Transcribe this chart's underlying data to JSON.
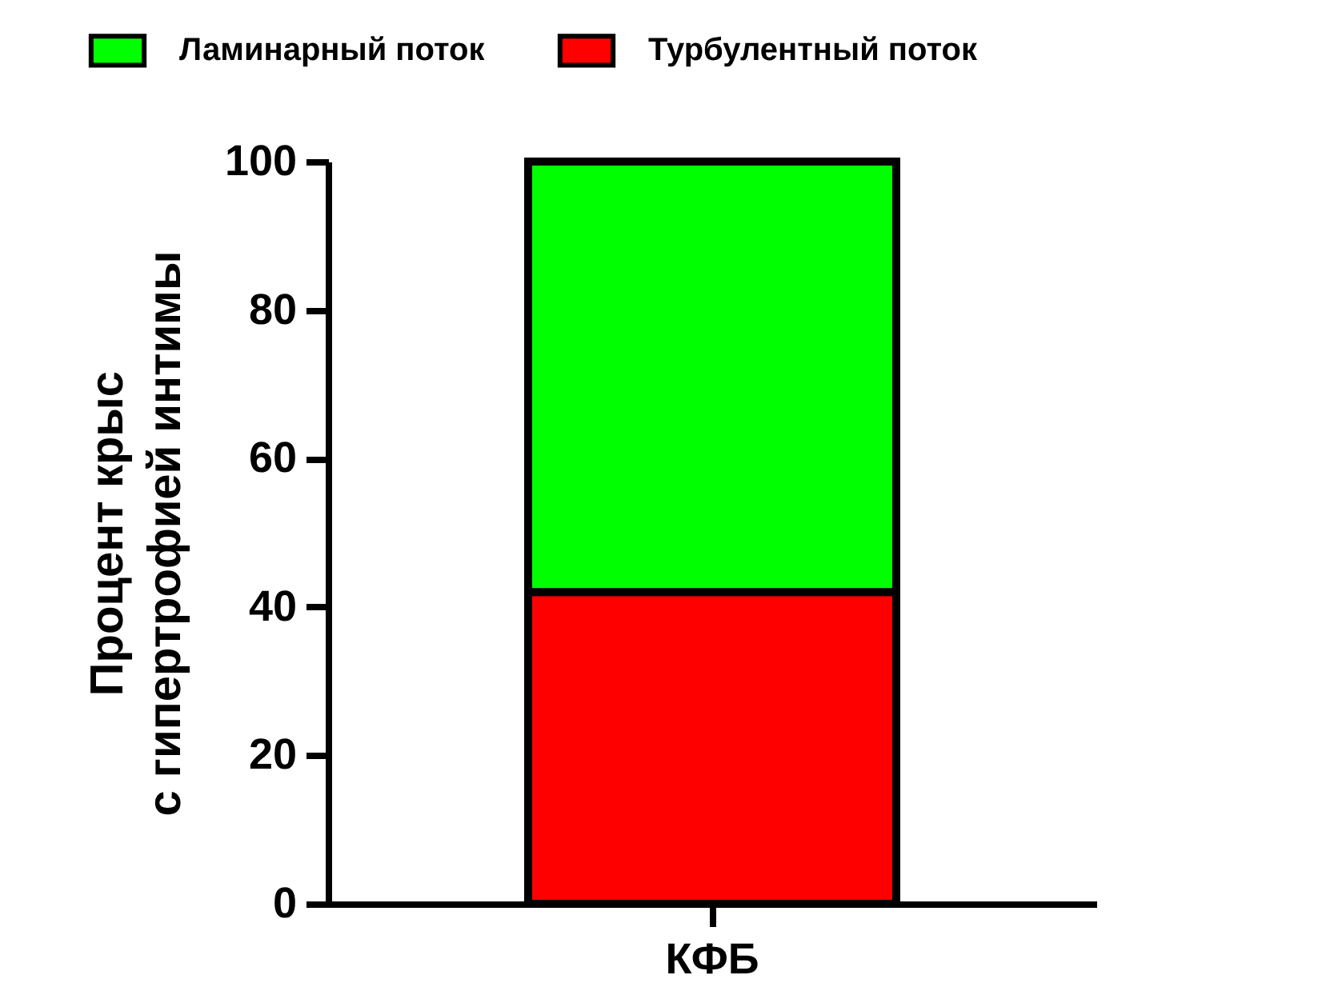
{
  "chart_data": {
    "type": "bar",
    "stacked": true,
    "ylabel": "Процент крыс\nс гипертрофией интимы",
    "categories": [
      "КФБ"
    ],
    "series": [
      {
        "name": "Турбулентный поток",
        "color": "#ff0000",
        "values": [
          42
        ]
      },
      {
        "name": "Ламинарный поток",
        "color": "#00ff00",
        "values": [
          58
        ]
      }
    ],
    "ylim": [
      0,
      100
    ],
    "yticks": [
      0,
      20,
      40,
      60,
      80,
      100
    ],
    "grid": false,
    "legend": "top"
  }
}
